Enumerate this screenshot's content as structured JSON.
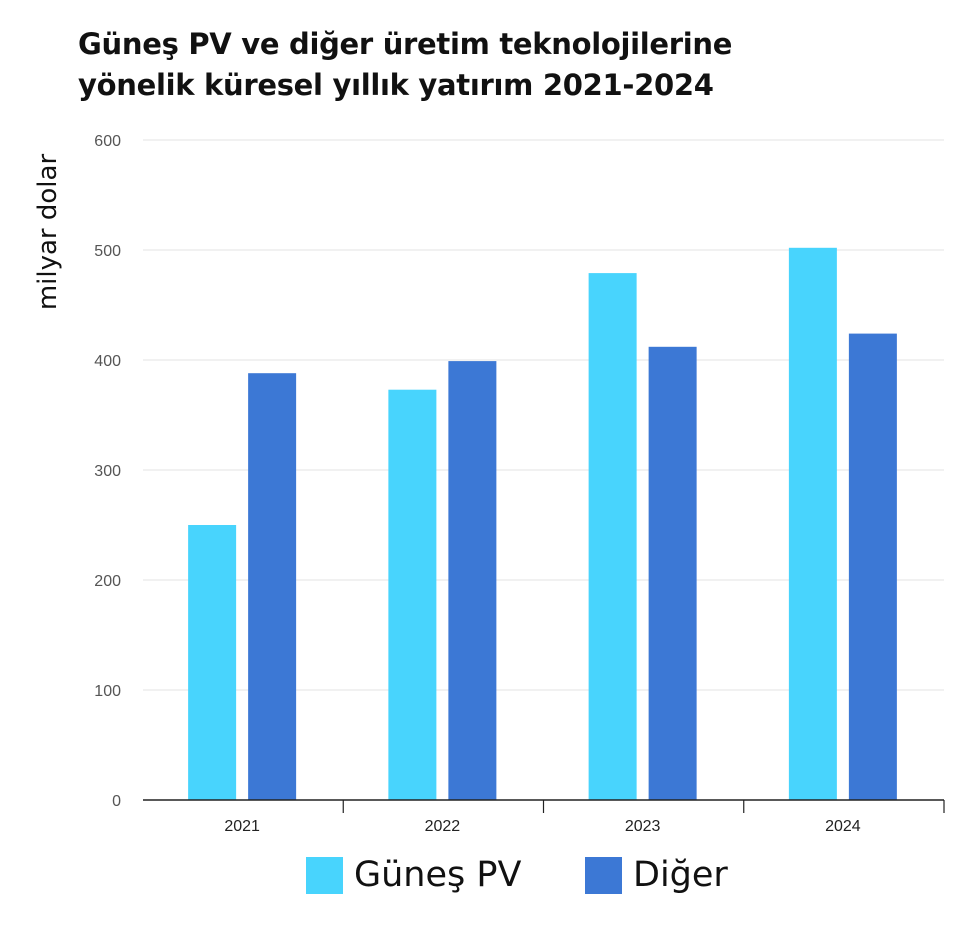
{
  "chart_data": {
    "type": "bar",
    "title_lines": [
      "Güneş PV ve diğer üretim teknolojilerine",
      "yönelik küresel yıllık yatırım 2021-2024"
    ],
    "xlabel": "",
    "ylabel": "milyar dolar",
    "categories": [
      "2021",
      "2022",
      "2023",
      "2024"
    ],
    "series": [
      {
        "name": "Güneş PV",
        "color": "#48d4fd",
        "values": [
          250,
          373,
          479,
          502
        ]
      },
      {
        "name": "Diğer",
        "color": "#3c78d5",
        "values": [
          388,
          399,
          412,
          424
        ]
      }
    ],
    "ylim": [
      0,
      600
    ],
    "yticks": [
      0,
      100,
      200,
      300,
      400,
      500,
      600
    ],
    "grid": true,
    "legend_position": "bottom"
  }
}
